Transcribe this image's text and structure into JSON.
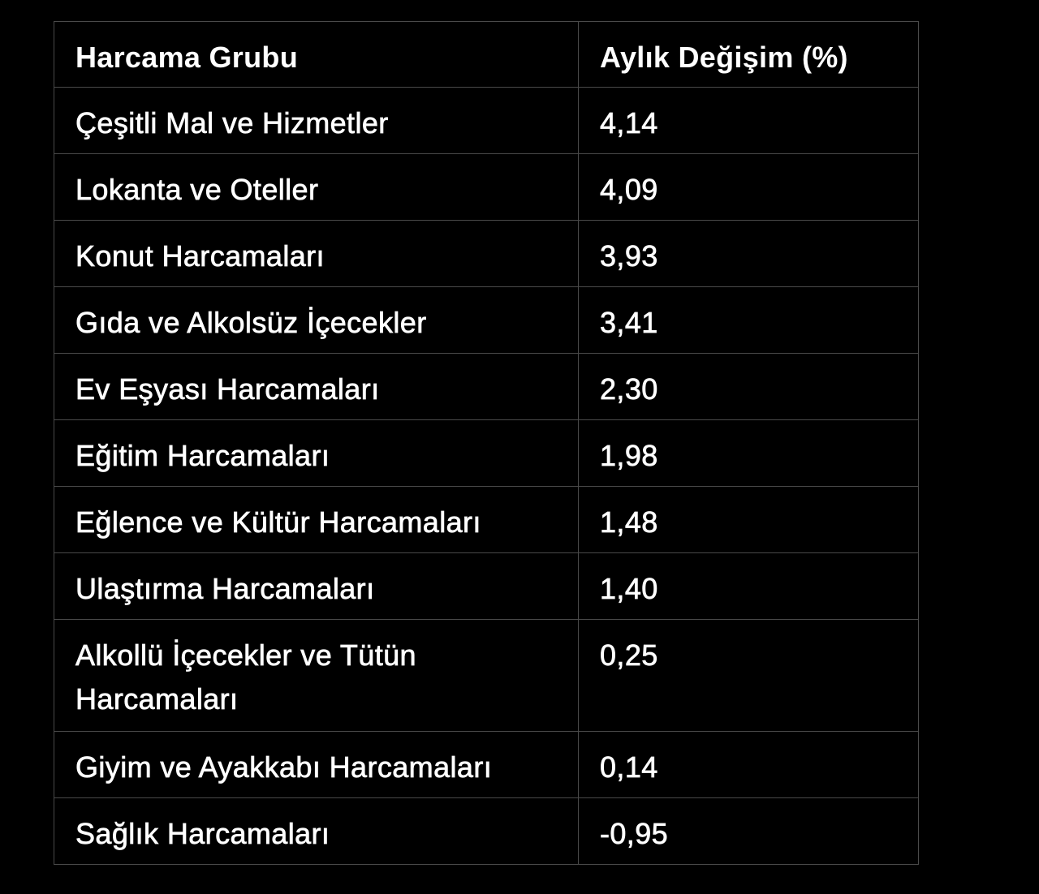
{
  "table": {
    "headers": [
      "Harcama Grubu",
      "Aylık Değişim (%)"
    ],
    "rows": [
      [
        "Çeşitli Mal ve Hizmetler",
        "4,14"
      ],
      [
        "Lokanta ve Oteller",
        "4,09"
      ],
      [
        "Konut Harcamaları",
        "3,93"
      ],
      [
        "Gıda ve Alkolsüz İçecekler",
        "3,41"
      ],
      [
        "Ev Eşyası Harcamaları",
        "2,30"
      ],
      [
        "Eğitim Harcamaları",
        "1,98"
      ],
      [
        "Eğlence ve Kültür Harcamaları",
        "1,48"
      ],
      [
        "Ulaştırma Harcamaları",
        "1,40"
      ],
      [
        "Alkollü İçecekler ve Tütün Harcamaları",
        "0,25"
      ],
      [
        "Giyim ve Ayakkabı Harcamaları",
        "0,14"
      ],
      [
        "Sağlık Harcamaları",
        "-0,95"
      ]
    ]
  },
  "colors": {
    "background": "#000000",
    "text": "#ffffff",
    "border": "#4a4a4a"
  }
}
